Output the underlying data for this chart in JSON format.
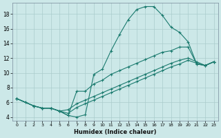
{
  "xlabel": "Humidex (Indice chaleur)",
  "bg_color": "#cce8e8",
  "line_color": "#1a7a6e",
  "grid_color": "#aacccc",
  "xlim": [
    -0.5,
    23.5
  ],
  "ylim": [
    3.5,
    19.5
  ],
  "xticks": [
    0,
    1,
    2,
    3,
    4,
    5,
    6,
    7,
    8,
    9,
    10,
    11,
    12,
    13,
    14,
    15,
    16,
    17,
    18,
    19,
    20,
    21,
    22,
    23
  ],
  "yticks": [
    4,
    6,
    8,
    10,
    12,
    14,
    16,
    18
  ],
  "lines": [
    {
      "x": [
        0,
        1,
        2,
        3,
        4,
        5,
        6,
        7,
        8,
        9,
        10,
        11,
        12,
        13,
        14,
        15,
        16,
        17,
        18,
        19,
        20,
        21,
        22,
        23
      ],
      "y": [
        6.5,
        6.0,
        5.5,
        5.2,
        5.2,
        4.8,
        4.2,
        4.0,
        4.3,
        9.8,
        10.5,
        13.0,
        15.2,
        17.2,
        18.6,
        19.0,
        19.0,
        17.8,
        16.2,
        15.5,
        14.2,
        11.2,
        11.0,
        11.5
      ]
    },
    {
      "x": [
        0,
        1,
        2,
        3,
        4,
        5,
        6,
        7,
        8,
        9,
        10,
        11,
        12,
        13,
        14,
        15,
        16,
        17,
        18,
        19,
        20,
        21,
        22,
        23
      ],
      "y": [
        6.5,
        6.0,
        5.5,
        5.2,
        5.2,
        4.8,
        4.2,
        7.5,
        7.5,
        8.5,
        9.0,
        9.8,
        10.3,
        10.8,
        11.3,
        11.8,
        12.3,
        12.8,
        13.0,
        13.5,
        13.5,
        11.2,
        11.0,
        11.5
      ]
    },
    {
      "x": [
        0,
        2,
        3,
        4,
        5,
        6,
        7,
        8,
        9,
        10,
        11,
        12,
        13,
        14,
        15,
        16,
        17,
        18,
        19,
        20,
        21,
        22,
        23
      ],
      "y": [
        6.5,
        5.5,
        5.2,
        5.2,
        4.8,
        5.0,
        5.8,
        6.3,
        6.8,
        7.3,
        7.8,
        8.3,
        8.8,
        9.3,
        9.8,
        10.3,
        10.8,
        11.3,
        11.7,
        12.0,
        11.5,
        11.0,
        11.5
      ]
    },
    {
      "x": [
        0,
        2,
        3,
        4,
        5,
        6,
        7,
        8,
        9,
        10,
        11,
        12,
        13,
        14,
        15,
        16,
        17,
        18,
        19,
        20,
        21,
        22,
        23
      ],
      "y": [
        6.5,
        5.5,
        5.2,
        5.2,
        4.8,
        4.5,
        5.3,
        5.8,
        6.3,
        6.8,
        7.3,
        7.8,
        8.3,
        8.8,
        9.3,
        9.8,
        10.3,
        10.8,
        11.2,
        11.7,
        11.3,
        11.0,
        11.5
      ]
    }
  ]
}
